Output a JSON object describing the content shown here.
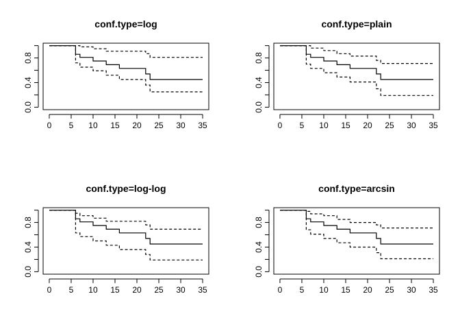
{
  "chart_data": [
    {
      "type": "line",
      "title": "conf.type=log",
      "xlabel": "",
      "ylabel": "",
      "xlim": [
        0,
        35
      ],
      "ylim": [
        0,
        1
      ],
      "xticks": [
        "0",
        "5",
        "10",
        "15",
        "20",
        "25",
        "30",
        "35"
      ],
      "yticks": [
        "0.0",
        "0.4",
        "0.8"
      ],
      "series": [
        {
          "style": "solid",
          "x": [
            0,
            6,
            6,
            7,
            7,
            10,
            10,
            13,
            13,
            16,
            16,
            22,
            22,
            23,
            23,
            35
          ],
          "y": [
            1,
            1,
            0.86,
            0.86,
            0.81,
            0.81,
            0.75,
            0.75,
            0.69,
            0.69,
            0.63,
            0.63,
            0.54,
            0.54,
            0.45,
            0.45
          ]
        },
        {
          "style": "dashed",
          "x": [
            0,
            6,
            6,
            7,
            7,
            10,
            10,
            13,
            13,
            16,
            16,
            22,
            22,
            23,
            23,
            35
          ],
          "y": [
            1,
            1,
            1,
            1,
            0.98,
            0.98,
            0.95,
            0.95,
            0.91,
            0.91,
            0.91,
            0.91,
            0.87,
            0.87,
            0.81,
            0.81
          ]
        },
        {
          "style": "dashed",
          "x": [
            0,
            6,
            6,
            7,
            7,
            10,
            10,
            13,
            13,
            16,
            16,
            22,
            22,
            23,
            23,
            35
          ],
          "y": [
            1,
            1,
            0.72,
            0.72,
            0.65,
            0.65,
            0.59,
            0.59,
            0.52,
            0.52,
            0.45,
            0.45,
            0.36,
            0.36,
            0.25,
            0.25
          ]
        }
      ]
    },
    {
      "type": "line",
      "title": "conf.type=plain",
      "xlabel": "",
      "ylabel": "",
      "xlim": [
        0,
        35
      ],
      "ylim": [
        0,
        1
      ],
      "xticks": [
        "0",
        "5",
        "10",
        "15",
        "20",
        "25",
        "30",
        "35"
      ],
      "yticks": [
        "0.0",
        "0.4",
        "0.8"
      ],
      "series": [
        {
          "style": "solid",
          "x": [
            0,
            6,
            6,
            7,
            7,
            10,
            10,
            13,
            13,
            16,
            16,
            22,
            22,
            23,
            23,
            35
          ],
          "y": [
            1,
            1,
            0.86,
            0.86,
            0.81,
            0.81,
            0.75,
            0.75,
            0.69,
            0.69,
            0.63,
            0.63,
            0.54,
            0.54,
            0.45,
            0.45
          ]
        },
        {
          "style": "dashed",
          "x": [
            0,
            6,
            6,
            7,
            7,
            10,
            10,
            13,
            13,
            16,
            16,
            22,
            22,
            23,
            23,
            35
          ],
          "y": [
            1,
            1,
            1,
            1,
            0.96,
            0.96,
            0.92,
            0.92,
            0.87,
            0.87,
            0.83,
            0.83,
            0.76,
            0.76,
            0.71,
            0.71
          ]
        },
        {
          "style": "dashed",
          "x": [
            0,
            6,
            6,
            7,
            7,
            10,
            10,
            13,
            13,
            16,
            16,
            22,
            22,
            23,
            23,
            35
          ],
          "y": [
            1,
            1,
            0.7,
            0.7,
            0.63,
            0.63,
            0.56,
            0.56,
            0.49,
            0.49,
            0.41,
            0.41,
            0.3,
            0.3,
            0.19,
            0.19
          ]
        }
      ]
    },
    {
      "type": "line",
      "title": "conf.type=log-log",
      "xlabel": "",
      "ylabel": "",
      "xlim": [
        0,
        35
      ],
      "ylim": [
        0,
        1
      ],
      "xticks": [
        "0",
        "5",
        "10",
        "15",
        "20",
        "25",
        "30",
        "35"
      ],
      "yticks": [
        "0.0",
        "0.4",
        "0.8"
      ],
      "series": [
        {
          "style": "solid",
          "x": [
            0,
            6,
            6,
            7,
            7,
            10,
            10,
            13,
            13,
            16,
            16,
            22,
            22,
            23,
            23,
            35
          ],
          "y": [
            1,
            1,
            0.86,
            0.86,
            0.81,
            0.81,
            0.75,
            0.75,
            0.69,
            0.69,
            0.63,
            0.63,
            0.54,
            0.54,
            0.45,
            0.45
          ]
        },
        {
          "style": "dashed",
          "x": [
            0,
            6,
            6,
            7,
            7,
            10,
            10,
            13,
            13,
            16,
            16,
            22,
            22,
            23,
            23,
            35
          ],
          "y": [
            1,
            1,
            0.95,
            0.95,
            0.91,
            0.91,
            0.87,
            0.87,
            0.82,
            0.82,
            0.82,
            0.82,
            0.76,
            0.76,
            0.69,
            0.69
          ]
        },
        {
          "style": "dashed",
          "x": [
            0,
            6,
            6,
            7,
            7,
            10,
            10,
            13,
            13,
            16,
            16,
            22,
            22,
            23,
            23,
            35
          ],
          "y": [
            1,
            1,
            0.63,
            0.63,
            0.57,
            0.57,
            0.5,
            0.5,
            0.43,
            0.43,
            0.36,
            0.36,
            0.28,
            0.28,
            0.19,
            0.19
          ]
        }
      ]
    },
    {
      "type": "line",
      "title": "conf.type=arcsin",
      "xlabel": "",
      "ylabel": "",
      "xlim": [
        0,
        35
      ],
      "ylim": [
        0,
        1
      ],
      "xticks": [
        "0",
        "5",
        "10",
        "15",
        "20",
        "25",
        "30",
        "35"
      ],
      "yticks": [
        "0.0",
        "0.4",
        "0.8"
      ],
      "series": [
        {
          "style": "solid",
          "x": [
            0,
            6,
            6,
            7,
            7,
            10,
            10,
            13,
            13,
            16,
            16,
            22,
            22,
            23,
            23,
            35
          ],
          "y": [
            1,
            1,
            0.86,
            0.86,
            0.81,
            0.81,
            0.75,
            0.75,
            0.69,
            0.69,
            0.63,
            0.63,
            0.54,
            0.54,
            0.45,
            0.45
          ]
        },
        {
          "style": "dashed",
          "x": [
            0,
            6,
            6,
            7,
            7,
            10,
            10,
            13,
            13,
            16,
            16,
            22,
            22,
            23,
            23,
            35
          ],
          "y": [
            1,
            1,
            0.98,
            0.98,
            0.94,
            0.94,
            0.91,
            0.91,
            0.85,
            0.85,
            0.8,
            0.8,
            0.76,
            0.76,
            0.71,
            0.71
          ]
        },
        {
          "style": "dashed",
          "x": [
            0,
            6,
            6,
            7,
            7,
            10,
            10,
            13,
            13,
            16,
            16,
            22,
            22,
            23,
            23,
            35
          ],
          "y": [
            1,
            1,
            0.68,
            0.68,
            0.61,
            0.61,
            0.54,
            0.54,
            0.47,
            0.47,
            0.4,
            0.4,
            0.31,
            0.31,
            0.21,
            0.21
          ]
        }
      ]
    }
  ]
}
